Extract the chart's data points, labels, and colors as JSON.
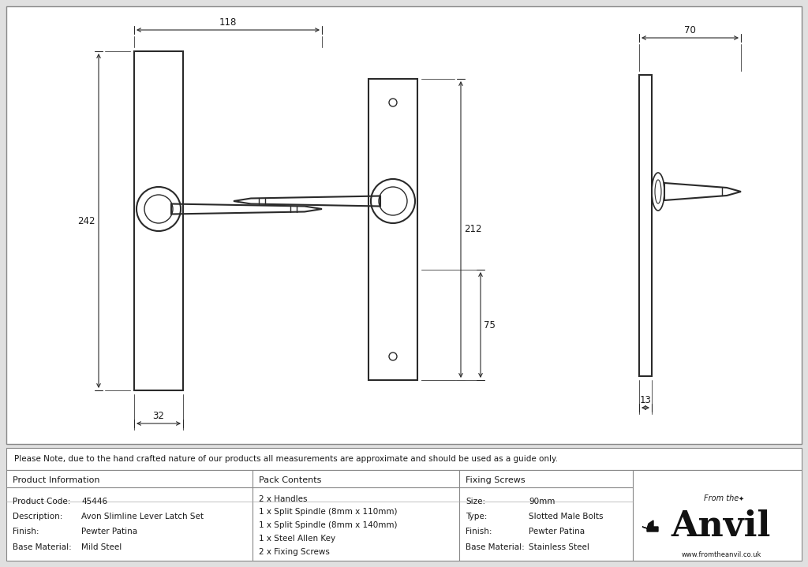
{
  "bg_color": "#e0e0e0",
  "drawing_bg": "#f5f5f5",
  "line_color": "#2a2a2a",
  "text_color": "#1a1a1a",
  "note_text": "Please Note, due to the hand crafted nature of our products all measurements are approximate and should be used as a guide only.",
  "product_info": {
    "header": "Product Information",
    "rows": [
      [
        "Product Code:",
        "45446"
      ],
      [
        "Description:",
        "Avon Slimline Lever Latch Set"
      ],
      [
        "Finish:",
        "Pewter Patina"
      ],
      [
        "Base Material:",
        "Mild Steel"
      ]
    ]
  },
  "pack_contents": {
    "header": "Pack Contents",
    "items": [
      "2 x Handles",
      "1 x Split Spindle (8mm x 110mm)",
      "1 x Split Spindle (8mm x 140mm)",
      "1 x Steel Allen Key",
      "2 x Fixing Screws"
    ]
  },
  "fixing_screws": {
    "header": "Fixing Screws",
    "rows": [
      [
        "Size:",
        "90mm"
      ],
      [
        "Type:",
        "Slotted Male Bolts"
      ],
      [
        "Finish:",
        "Pewter Patina"
      ],
      [
        "Base Material:",
        "Stainless Steel"
      ]
    ]
  }
}
